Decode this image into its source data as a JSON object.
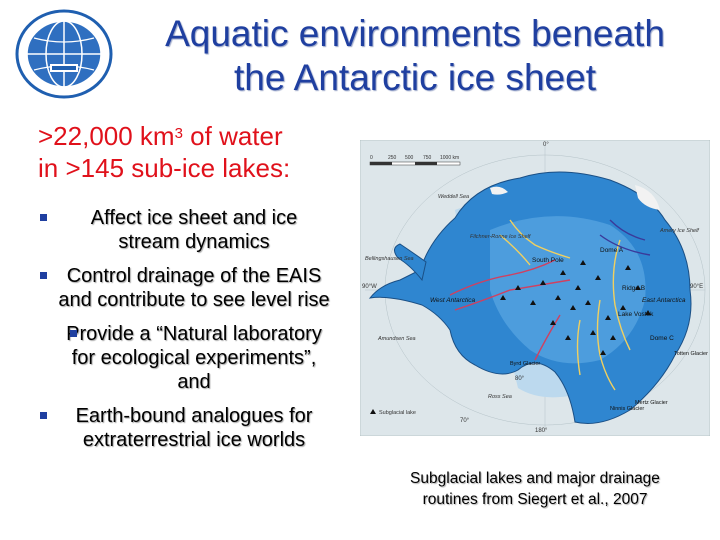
{
  "title": {
    "line1": "Aquatic environments beneath",
    "line2": "the Antarctic ice sheet"
  },
  "stat": {
    "line1_pre": ">22,000 km",
    "line1_sup": "3",
    "line1_post": " of water",
    "line2": "in >145 sub-ice lakes:"
  },
  "bullets": [
    "Affect ice sheet and ice stream dynamics",
    "Control drainage of the EAIS and contribute to see level rise",
    "Provide a “Natural laboratory for ecological experiments”, and",
    "Earth-bound analogues for extraterrestrial ice worlds"
  ],
  "caption": {
    "line1": "Subglacial lakes and major drainage",
    "line2": "routines from Siegert et al., 2007"
  },
  "map": {
    "scale_labels": [
      "0",
      "250",
      "500",
      "750",
      "1000 km"
    ],
    "compass": {
      "top": "0°",
      "left": "90°W",
      "right": "90°E",
      "bottom": "180°"
    },
    "labels": {
      "weddell": "Weddell Sea",
      "filchner": "Filchner-Ronne Ice Shelf",
      "amery": "Amery Ice Shelf",
      "bellingshausen": "Bellingshausen Sea",
      "south_pole": "South Pole",
      "dome_a": "Dome A",
      "ridge_b": "Ridge B",
      "east_antarctica": "East Antarctica",
      "west_antarctica": "West Antarctica",
      "lake_vostok": "Lake Vostok",
      "dome_c": "Dome C",
      "amundsen": "Amundsen Sea",
      "byrd": "Byrd Glacier",
      "totten": "Totten Glacier",
      "lat80": "80°",
      "lat70": "70°",
      "ross": "Ross Sea",
      "ninnis": "Ninnis Glacier",
      "mertz": "Mertz Glacier",
      "legend": "Subglacial lake"
    },
    "colors": {
      "ocean": "#dde6ea",
      "ice_shelf": "#bcd9ee",
      "ice_sheet": "#2f86d0",
      "rock": "#f2f2f2"
    }
  }
}
